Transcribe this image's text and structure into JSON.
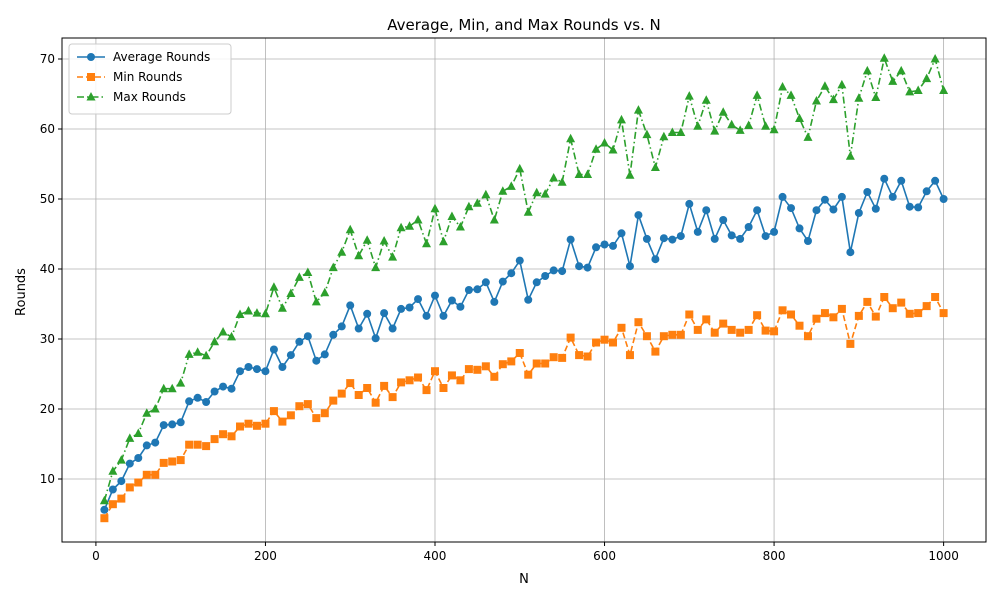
{
  "chart_data": {
    "type": "line",
    "title": "Average, Min, and Max Rounds vs. N",
    "xlabel": "N",
    "ylabel": "Rounds",
    "xlim": [
      -40,
      1050
    ],
    "ylim": [
      1,
      73
    ],
    "xticks": [
      0,
      200,
      400,
      600,
      800,
      1000
    ],
    "yticks": [
      10,
      20,
      30,
      40,
      50,
      60,
      70
    ],
    "grid": true,
    "legend_position": "upper-left",
    "x": [
      10,
      20,
      30,
      40,
      50,
      60,
      70,
      80,
      90,
      100,
      110,
      120,
      130,
      140,
      150,
      160,
      170,
      180,
      190,
      200,
      210,
      220,
      230,
      240,
      250,
      260,
      270,
      280,
      290,
      300,
      310,
      320,
      330,
      340,
      350,
      360,
      370,
      380,
      390,
      400,
      410,
      420,
      430,
      440,
      450,
      460,
      470,
      480,
      490,
      500,
      510,
      520,
      530,
      540,
      550,
      560,
      570,
      580,
      590,
      600,
      610,
      620,
      630,
      640,
      650,
      660,
      670,
      680,
      690,
      700,
      710,
      720,
      730,
      740,
      750,
      760,
      770,
      780,
      790,
      800,
      810,
      820,
      830,
      840,
      850,
      860,
      870,
      880,
      890,
      900,
      910,
      920,
      930,
      940,
      950,
      960,
      970,
      980,
      990,
      1000
    ],
    "series": [
      {
        "name": "Average Rounds",
        "color": "#1f77b4",
        "marker": "circle",
        "linestyle": "solid",
        "values": [
          5.6,
          8.5,
          9.7,
          12.2,
          13.0,
          14.8,
          15.2,
          17.7,
          17.8,
          18.1,
          21.1,
          21.6,
          21.0,
          22.5,
          23.2,
          22.9,
          25.4,
          26.0,
          25.7,
          25.4,
          28.5,
          26.0,
          27.7,
          29.6,
          30.4,
          26.9,
          27.8,
          30.6,
          31.8,
          34.8,
          31.5,
          33.6,
          30.1,
          33.7,
          31.5,
          34.3,
          34.5,
          35.7,
          33.3,
          36.2,
          33.3,
          35.5,
          34.6,
          37.0,
          37.1,
          38.1,
          35.3,
          38.2,
          39.4,
          41.2,
          35.6,
          38.1,
          39.0,
          39.8,
          39.7,
          44.2,
          40.4,
          40.2,
          43.1,
          43.5,
          43.3,
          45.1,
          40.4,
          47.7,
          44.3,
          41.4,
          44.4,
          44.2,
          44.7,
          49.3,
          45.3,
          48.4,
          44.3,
          47.0,
          44.8,
          44.3,
          46.0,
          48.4,
          44.7,
          45.3,
          50.3,
          48.7,
          45.8,
          44.0,
          48.4,
          49.9,
          48.5,
          50.3,
          42.4,
          48.0,
          51.0,
          48.6,
          52.9,
          50.3,
          52.6,
          48.9,
          48.8,
          51.1,
          52.6,
          50.0
        ]
      },
      {
        "name": "Min Rounds",
        "color": "#ff7f0e",
        "marker": "square",
        "linestyle": "dashed",
        "values": [
          4.4,
          6.4,
          7.2,
          8.8,
          9.5,
          10.6,
          10.6,
          12.3,
          12.5,
          12.7,
          14.9,
          14.9,
          14.7,
          15.7,
          16.4,
          16.1,
          17.5,
          17.9,
          17.6,
          17.9,
          19.7,
          18.2,
          19.1,
          20.4,
          20.7,
          18.7,
          19.4,
          21.2,
          22.2,
          23.7,
          22.0,
          23.0,
          20.9,
          23.3,
          21.7,
          23.8,
          24.1,
          24.5,
          22.7,
          25.4,
          23.0,
          24.8,
          24.1,
          25.7,
          25.6,
          26.1,
          24.6,
          26.4,
          26.8,
          28.0,
          24.9,
          26.5,
          26.5,
          27.4,
          27.3,
          30.2,
          27.7,
          27.5,
          29.5,
          29.9,
          29.5,
          31.6,
          27.7,
          32.4,
          30.4,
          28.2,
          30.4,
          30.6,
          30.6,
          33.5,
          31.3,
          32.8,
          30.9,
          32.2,
          31.3,
          30.9,
          31.3,
          33.4,
          31.2,
          31.1,
          34.1,
          33.5,
          31.9,
          30.4,
          32.9,
          33.7,
          33.1,
          34.3,
          29.3,
          33.3,
          35.3,
          33.2,
          36.0,
          34.4,
          35.2,
          33.6,
          33.7,
          34.7,
          36.0,
          33.7
        ]
      },
      {
        "name": "Max Rounds",
        "color": "#2ca02c",
        "marker": "triangle",
        "linestyle": "dashdot",
        "values": [
          6.9,
          11.1,
          12.7,
          15.8,
          16.5,
          19.4,
          20.0,
          22.9,
          22.9,
          23.7,
          27.8,
          28.1,
          27.6,
          29.6,
          31.0,
          30.3,
          33.5,
          34.0,
          33.7,
          33.6,
          37.4,
          34.4,
          36.5,
          38.8,
          39.5,
          35.3,
          36.6,
          40.2,
          42.4,
          45.6,
          41.9,
          44.1,
          40.2,
          44.0,
          41.7,
          45.9,
          46.1,
          47.0,
          43.6,
          48.6,
          43.9,
          47.5,
          46.0,
          48.9,
          49.4,
          50.6,
          47.0,
          51.1,
          51.8,
          54.3,
          48.1,
          50.9,
          50.7,
          53.0,
          52.4,
          58.6,
          53.5,
          53.5,
          57.1,
          58.0,
          57.0,
          61.3,
          53.4,
          62.7,
          59.2,
          54.5,
          58.9,
          59.5,
          59.5,
          64.7,
          60.4,
          64.1,
          59.7,
          62.4,
          60.6,
          59.8,
          60.5,
          64.8,
          60.4,
          59.9,
          66.0,
          64.8,
          61.5,
          58.8,
          64.0,
          66.1,
          64.2,
          66.3,
          56.1,
          64.4,
          68.3,
          64.5,
          70.1,
          66.8,
          68.3,
          65.3,
          65.5,
          67.2,
          70.0,
          65.5
        ]
      }
    ]
  }
}
